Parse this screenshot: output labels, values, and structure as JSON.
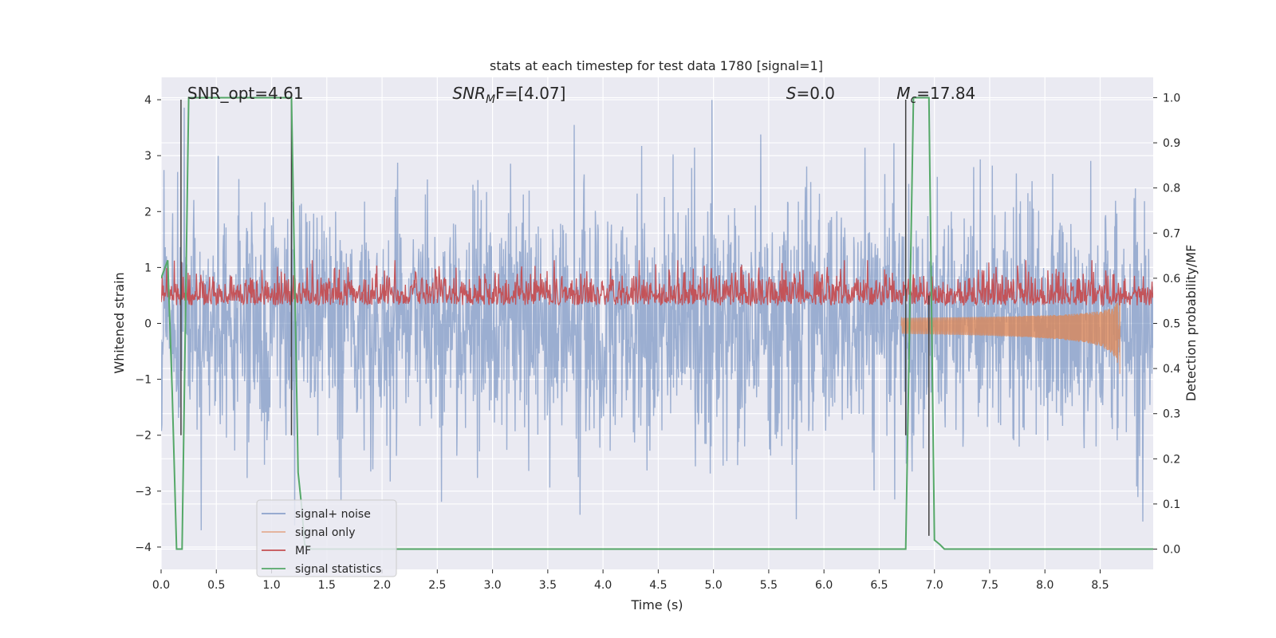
{
  "chart_data": {
    "type": "line",
    "title": "stats at each timestep for test data 1780 [signal=1]",
    "xlabel": "Time (s)",
    "ylabel": "Whitened strain",
    "ylabel_right": "Detection probability/MF",
    "xlim": [
      0.0,
      8.98
    ],
    "ylim": [
      -4.4,
      4.4
    ],
    "ylim_right": [
      -0.045,
      1.045
    ],
    "x_ticks": [
      "0.0",
      "0.5",
      "1.0",
      "1.5",
      "2.0",
      "2.5",
      "3.0",
      "3.5",
      "4.0",
      "4.5",
      "5.0",
      "5.5",
      "6.0",
      "6.5",
      "7.0",
      "7.5",
      "8.0",
      "8.5"
    ],
    "y_ticks": [
      "−4",
      "−3",
      "−2",
      "−1",
      "0",
      "1",
      "2",
      "3",
      "4"
    ],
    "y_ticks_right": [
      "0.0",
      "0.1",
      "0.2",
      "0.3",
      "0.4",
      "0.5",
      "0.6",
      "0.7",
      "0.8",
      "0.9",
      "1.0"
    ],
    "grid": true,
    "legend_position": "lower-left",
    "annotations": [
      {
        "text": "SNR_opt=4.61",
        "x": 0.18
      },
      {
        "text": "SNR",
        "sub": "M",
        "tail": "F=[4.07]",
        "italic": true,
        "x": 2.58
      },
      {
        "text": "S",
        "tail": "=0.0",
        "italic": true,
        "x": 5.6
      },
      {
        "text": "M",
        "sub": "c",
        "tail": "=17.84",
        "italic": true,
        "x": 6.6
      }
    ],
    "series": [
      {
        "name": "signal+ noise",
        "color": "#4c72b0",
        "kind": "noise",
        "amplitude_std": 1.0,
        "range": [
          -3.7,
          4.0
        ]
      },
      {
        "name": "signal only",
        "color": "#dd8452",
        "kind": "chirp",
        "x_start": 6.7,
        "x_end": 8.68,
        "peak": -0.72
      },
      {
        "name": "MF",
        "color": "#c44e52",
        "kind": "mf",
        "baseline_right": 0.55,
        "range_right": [
          0.5,
          0.64
        ]
      },
      {
        "name": "signal statistics",
        "color": "#55a868",
        "x": [
          0.0,
          0.06,
          0.1,
          0.14,
          0.19,
          0.25,
          1.18,
          1.24,
          1.27,
          1.3,
          1.36,
          6.74,
          6.81,
          6.95,
          7.0,
          7.05,
          7.09,
          8.98
        ],
        "y_right": [
          0.6,
          0.64,
          0.35,
          0.0,
          0.0,
          1.0,
          1.0,
          0.17,
          0.1,
          0.01,
          0.0,
          0.0,
          1.0,
          1.0,
          0.02,
          0.01,
          0.0,
          0.0
        ]
      }
    ],
    "vertical_lines": [
      {
        "x": 0.18,
        "y_from": -2.0,
        "y_to": 4.0
      },
      {
        "x": 1.18,
        "y_from": -2.0,
        "y_to": 4.0
      },
      {
        "x": 6.74,
        "y_from": -2.0,
        "y_to": 4.0
      },
      {
        "x": 6.95,
        "y_from": -3.8,
        "y_to": 0.5
      }
    ]
  }
}
